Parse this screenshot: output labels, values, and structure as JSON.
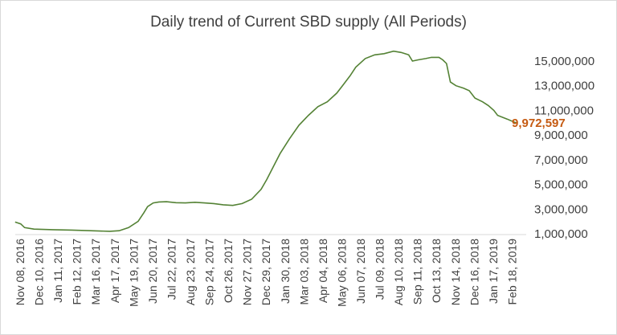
{
  "chart_data": {
    "type": "line",
    "title": "Daily trend of Current SBD supply (All Periods)",
    "series_name": "Current SBD supply",
    "line_color": "#548235",
    "end_label_color": "#c55a11",
    "ylim": [
      1000000,
      15000000
    ],
    "y_ticks": [
      1000000,
      3000000,
      5000000,
      7000000,
      9000000,
      11000000,
      13000000,
      15000000
    ],
    "y_tick_labels": [
      "1,000,000",
      "3,000,000",
      "5,000,000",
      "7,000,000",
      "9,000,000",
      "11,000,000",
      "13,000,000",
      "15,000,000"
    ],
    "x_tick_labels": [
      "Nov 08, 2016",
      "Dec 10, 2016",
      "Jan 11, 2017",
      "Feb 12, 2017",
      "Mar 16, 2017",
      "Apr 17, 2017",
      "May 19, 2017",
      "Jun 20, 2017",
      "Jul 22, 2017",
      "Aug 23, 2017",
      "Sep 24, 2017",
      "Oct 26, 2017",
      "Nov 27, 2017",
      "Dec 29, 2017",
      "Jan 30, 2018",
      "Mar 03, 2018",
      "Apr 04, 2018",
      "May 06, 2018",
      "Jun 07, 2018",
      "Jul 09, 2018",
      "Aug 10, 2018",
      "Sep 11, 2018",
      "Oct 13, 2018",
      "Nov 14, 2018",
      "Dec 16, 2018",
      "Jan 17, 2019",
      "Feb 18, 2019"
    ],
    "points": [
      [
        0,
        1950000
      ],
      [
        0.3,
        1800000
      ],
      [
        0.5,
        1500000
      ],
      [
        1,
        1380000
      ],
      [
        2,
        1330000
      ],
      [
        3,
        1300000
      ],
      [
        4,
        1250000
      ],
      [
        5,
        1200000
      ],
      [
        5.5,
        1250000
      ],
      [
        6,
        1500000
      ],
      [
        6.5,
        2000000
      ],
      [
        6.8,
        2700000
      ],
      [
        7,
        3200000
      ],
      [
        7.3,
        3500000
      ],
      [
        7.6,
        3580000
      ],
      [
        8,
        3600000
      ],
      [
        8.5,
        3520000
      ],
      [
        9,
        3500000
      ],
      [
        9.5,
        3550000
      ],
      [
        10,
        3500000
      ],
      [
        10.5,
        3450000
      ],
      [
        11,
        3350000
      ],
      [
        11.5,
        3300000
      ],
      [
        12,
        3450000
      ],
      [
        12.5,
        3800000
      ],
      [
        13,
        4600000
      ],
      [
        13.3,
        5400000
      ],
      [
        13.7,
        6600000
      ],
      [
        14,
        7500000
      ],
      [
        14.5,
        8700000
      ],
      [
        15,
        9800000
      ],
      [
        15.5,
        10600000
      ],
      [
        16,
        11300000
      ],
      [
        16.5,
        11700000
      ],
      [
        17,
        12400000
      ],
      [
        17.3,
        13000000
      ],
      [
        17.7,
        13800000
      ],
      [
        18,
        14500000
      ],
      [
        18.5,
        15200000
      ],
      [
        19,
        15500000
      ],
      [
        19.5,
        15600000
      ],
      [
        20,
        15800000
      ],
      [
        20.4,
        15700000
      ],
      [
        20.8,
        15500000
      ],
      [
        21,
        15000000
      ],
      [
        21.3,
        15100000
      ],
      [
        21.7,
        15200000
      ],
      [
        22,
        15300000
      ],
      [
        22.4,
        15300000
      ],
      [
        22.6,
        15100000
      ],
      [
        22.8,
        14800000
      ],
      [
        23,
        13300000
      ],
      [
        23.3,
        13000000
      ],
      [
        23.7,
        12800000
      ],
      [
        24,
        12600000
      ],
      [
        24.3,
        12000000
      ],
      [
        24.7,
        11700000
      ],
      [
        25,
        11400000
      ],
      [
        25.3,
        11000000
      ],
      [
        25.5,
        10600000
      ],
      [
        26,
        10300000
      ],
      [
        26.5,
        9972597
      ]
    ],
    "end_label": "9,972,597"
  }
}
